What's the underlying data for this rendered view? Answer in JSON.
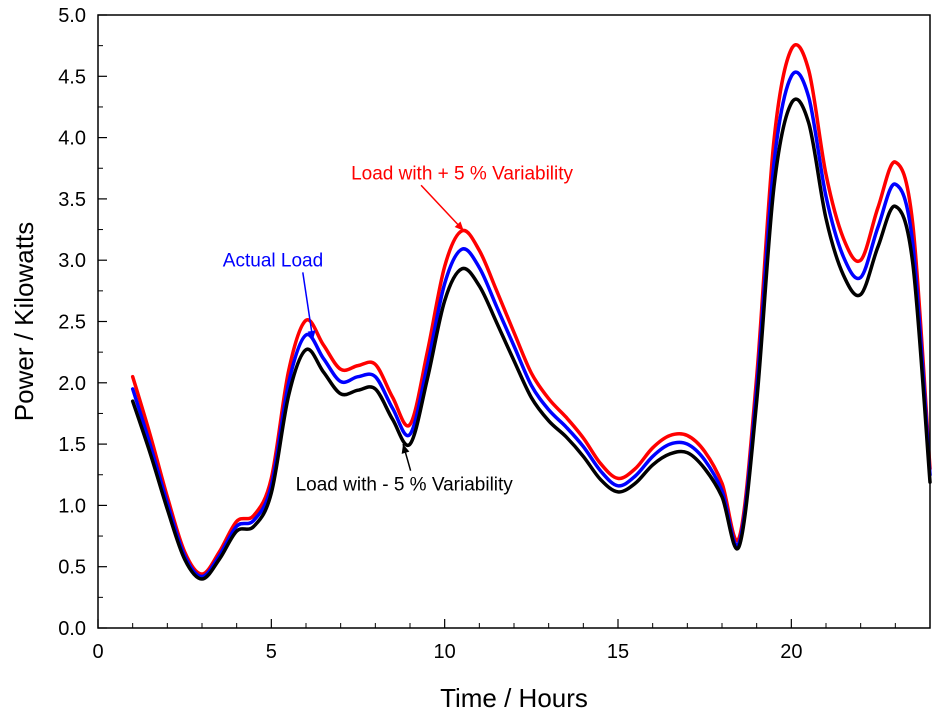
{
  "chart_data": {
    "type": "line",
    "xlabel": "Time / Hours",
    "ylabel": "Power / Kilowatts",
    "xlim": [
      0,
      24
    ],
    "ylim": [
      0,
      5
    ],
    "xticks": [
      "0",
      "5",
      "10",
      "15",
      "20"
    ],
    "yticks": [
      "0.0",
      "0.5",
      "1.0",
      "1.5",
      "2.0",
      "2.5",
      "3.0",
      "3.5",
      "4.0",
      "4.5",
      "5.0"
    ],
    "grid": false,
    "x": [
      1,
      1.5,
      2,
      2.5,
      3,
      3.5,
      4,
      4.5,
      5,
      5.5,
      6,
      6.5,
      7,
      7.5,
      8,
      8.5,
      9,
      9.5,
      10,
      10.5,
      11,
      11.5,
      12,
      12.5,
      13,
      13.5,
      14,
      14.5,
      15,
      15.5,
      16,
      16.5,
      17,
      17.5,
      18,
      18.5,
      19,
      19.5,
      20,
      20.5,
      21,
      21.5,
      22,
      22.5,
      23,
      23.5,
      24
    ],
    "series": [
      {
        "name": "Load with + 5 % Variability",
        "color": "#ff0000",
        "values": [
          2.05,
          1.58,
          1.07,
          0.62,
          0.44,
          0.62,
          0.87,
          0.92,
          1.22,
          2.1,
          2.51,
          2.31,
          2.11,
          2.14,
          2.15,
          1.88,
          1.66,
          2.25,
          2.95,
          3.24,
          3.08,
          2.75,
          2.41,
          2.08,
          1.87,
          1.72,
          1.55,
          1.34,
          1.22,
          1.3,
          1.47,
          1.57,
          1.57,
          1.44,
          1.18,
          0.74,
          2.05,
          3.98,
          4.72,
          4.55,
          3.7,
          3.18,
          3.0,
          3.43,
          3.8,
          3.3,
          1.3
        ]
      },
      {
        "name": "Actual Load",
        "color": "#0000ff",
        "values": [
          1.95,
          1.5,
          1.02,
          0.59,
          0.42,
          0.59,
          0.83,
          0.88,
          1.16,
          2.0,
          2.39,
          2.2,
          2.01,
          2.05,
          2.05,
          1.79,
          1.58,
          2.14,
          2.81,
          3.09,
          2.94,
          2.62,
          2.3,
          1.98,
          1.78,
          1.64,
          1.48,
          1.28,
          1.16,
          1.24,
          1.4,
          1.5,
          1.5,
          1.37,
          1.12,
          0.7,
          1.95,
          3.79,
          4.5,
          4.33,
          3.52,
          3.03,
          2.86,
          3.27,
          3.62,
          3.14,
          1.25
        ]
      },
      {
        "name": "Load with - 5 % Variability",
        "color": "#000000",
        "values": [
          1.85,
          1.43,
          0.97,
          0.56,
          0.4,
          0.56,
          0.79,
          0.83,
          1.1,
          1.9,
          2.27,
          2.09,
          1.91,
          1.94,
          1.95,
          1.7,
          1.5,
          2.03,
          2.67,
          2.93,
          2.79,
          2.49,
          2.18,
          1.88,
          1.69,
          1.56,
          1.4,
          1.21,
          1.11,
          1.18,
          1.33,
          1.42,
          1.43,
          1.3,
          1.07,
          0.67,
          1.85,
          3.6,
          4.28,
          4.12,
          3.34,
          2.88,
          2.72,
          3.11,
          3.44,
          2.98,
          1.19
        ]
      }
    ],
    "annotations": [
      {
        "text": "Load with + 5 % Variability",
        "color": "#ff0000",
        "x": 7.3,
        "y": 3.66,
        "target": [
          10.55,
          3.24
        ]
      },
      {
        "text": "Actual Load",
        "color": "#0000ff",
        "x": 3.6,
        "y": 2.95,
        "target": [
          6.2,
          2.35
        ]
      },
      {
        "text": "Load with - 5 % Variability",
        "color": "#000000",
        "x": 5.7,
        "y": 1.12,
        "target": [
          8.8,
          1.5
        ]
      }
    ]
  }
}
